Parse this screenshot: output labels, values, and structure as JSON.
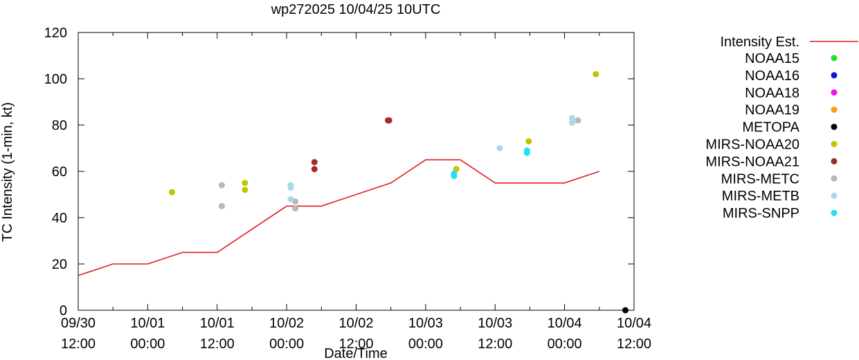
{
  "chart_data": {
    "type": "scatter",
    "title": "wp272025 10/04/25 10UTC",
    "xlabel": "Date/Time",
    "ylabel": "TC Intensity (1-min, kt)",
    "x_unit": "hours since 09/30 12:00",
    "xlim": [
      0,
      96
    ],
    "ylim": [
      0,
      120
    ],
    "y_ticks": [
      0,
      20,
      40,
      60,
      80,
      100,
      120
    ],
    "x_ticks": [
      {
        "x": 0,
        "line1": "09/30",
        "line2": "12:00"
      },
      {
        "x": 12,
        "line1": "10/01",
        "line2": "00:00"
      },
      {
        "x": 24,
        "line1": "10/01",
        "line2": "12:00"
      },
      {
        "x": 36,
        "line1": "10/02",
        "line2": "00:00"
      },
      {
        "x": 48,
        "line1": "10/02",
        "line2": "12:00"
      },
      {
        "x": 60,
        "line1": "10/03",
        "line2": "00:00"
      },
      {
        "x": 72,
        "line1": "10/03",
        "line2": "12:00"
      },
      {
        "x": 84,
        "line1": "10/04",
        "line2": "00:00"
      },
      {
        "x": 96,
        "line1": "10/04",
        "line2": "12:00"
      }
    ],
    "legend_position": "right",
    "intensity_line": {
      "name": "Intensity Est.",
      "color": "#e41a1c",
      "x": [
        0,
        6,
        12,
        18,
        24,
        30,
        36,
        42,
        48,
        54,
        60,
        66,
        72,
        78,
        84,
        90
      ],
      "y": [
        15,
        20,
        20,
        25,
        25,
        35,
        45,
        45,
        50,
        55,
        65,
        65,
        55,
        55,
        55,
        60
      ]
    },
    "series": [
      {
        "name": "NOAA15",
        "color": "#22e022",
        "points": []
      },
      {
        "name": "NOAA16",
        "color": "#1010e0",
        "points": []
      },
      {
        "name": "NOAA18",
        "color": "#f010f0",
        "points": []
      },
      {
        "name": "NOAA19",
        "color": "#ff9c1a",
        "points": []
      },
      {
        "name": "METOPA",
        "color": "#000000",
        "points": [
          [
            94.5,
            0
          ]
        ]
      },
      {
        "name": "MIRS-NOAA20",
        "color": "#c3c300",
        "points": [
          [
            16.2,
            51
          ],
          [
            28.8,
            55
          ],
          [
            28.8,
            52
          ],
          [
            65.3,
            61
          ],
          [
            77.8,
            73
          ],
          [
            89.4,
            102
          ]
        ]
      },
      {
        "name": "MIRS-NOAA21",
        "color": "#a52a2a",
        "points": [
          [
            40.8,
            64
          ],
          [
            40.8,
            61
          ],
          [
            53.5,
            82
          ],
          [
            53.7,
            82
          ]
        ]
      },
      {
        "name": "MIRS-METC",
        "color": "#b8b8b8",
        "points": [
          [
            24.8,
            54
          ],
          [
            24.8,
            45
          ],
          [
            37.5,
            47
          ],
          [
            37.5,
            44
          ],
          [
            86.3,
            82
          ]
        ]
      },
      {
        "name": "MIRS-METB",
        "color": "#add8e6",
        "points": [
          [
            36.7,
            54
          ],
          [
            36.7,
            53
          ],
          [
            36.7,
            48
          ],
          [
            72.8,
            70
          ],
          [
            85.3,
            83
          ],
          [
            85.3,
            81
          ]
        ]
      },
      {
        "name": "MIRS-SNPP",
        "color": "#1ee3ee",
        "points": [
          [
            64.9,
            58
          ],
          [
            64.9,
            59
          ],
          [
            77.5,
            69
          ],
          [
            77.5,
            68
          ]
        ]
      }
    ]
  }
}
